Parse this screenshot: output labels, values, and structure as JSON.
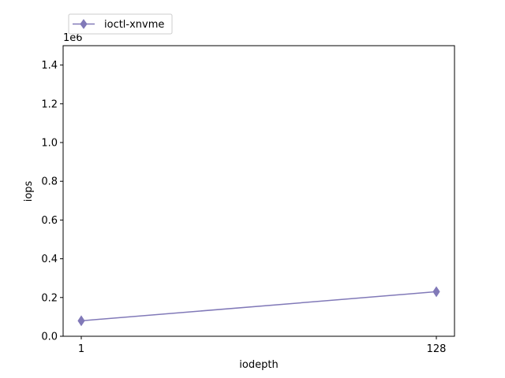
{
  "chart_data": {
    "type": "line",
    "xlabel": "iodepth",
    "ylabel": "iops",
    "y_offset_label": "1e6",
    "x_tick_labels": [
      "1",
      "128"
    ],
    "y_tick_labels": [
      "0.0",
      "0.2",
      "0.4",
      "0.6",
      "0.8",
      "1.0",
      "1.2",
      "1.4"
    ],
    "ylim": [
      0,
      1.5
    ],
    "y_ticks": [
      0.0,
      0.2,
      0.4,
      0.6,
      0.8,
      1.0,
      1.2,
      1.4
    ],
    "legend_position": "above-top-left",
    "grid": false,
    "series": [
      {
        "name": "ioctl-xnvme",
        "marker": "thin-diamond",
        "color": "#8179b8",
        "x": [
          "1",
          "128"
        ],
        "values": [
          0.08,
          0.23
        ]
      }
    ]
  }
}
